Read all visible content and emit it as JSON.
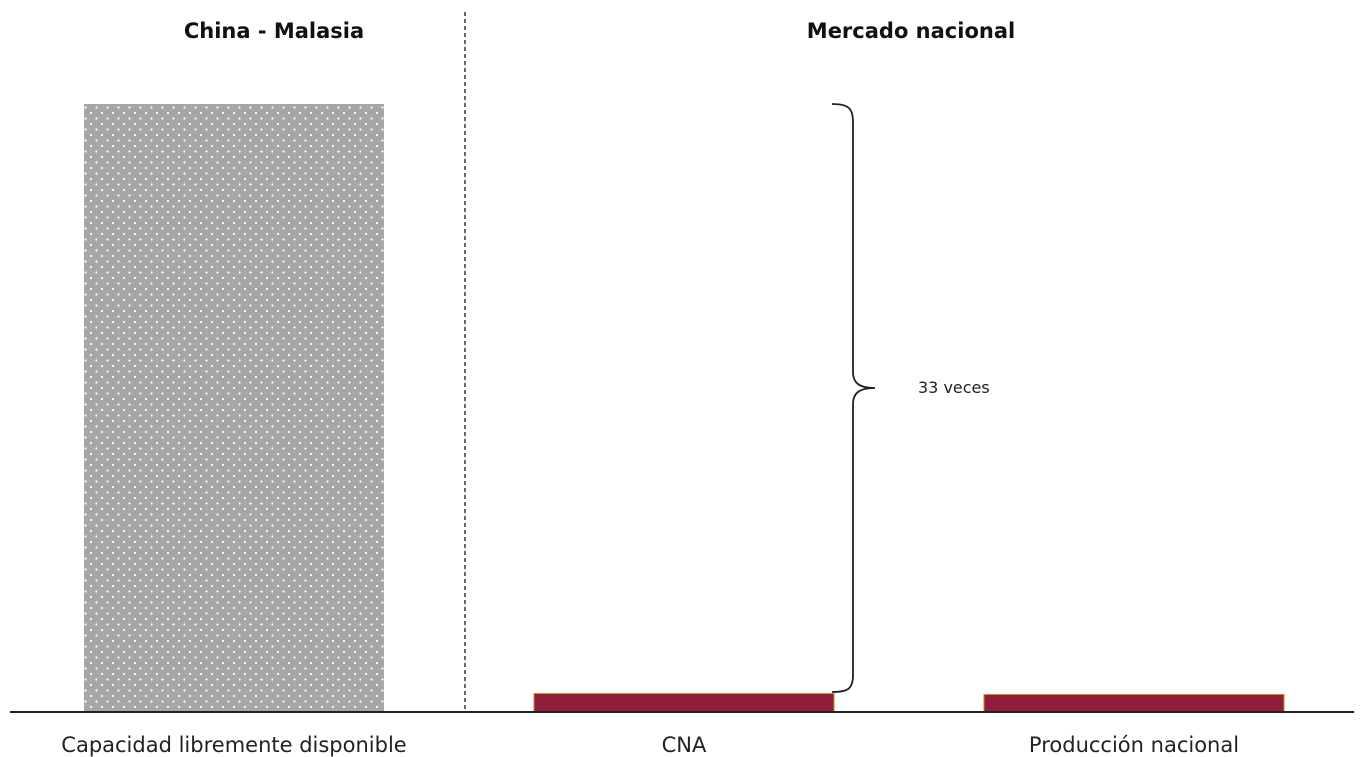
{
  "chart_data": {
    "type": "bar",
    "groups": [
      {
        "title": "China - Malasia",
        "categories": [
          "Capacidad libremente disponible"
        ]
      },
      {
        "title": "Mercado nacional",
        "categories": [
          "CNA",
          "Producción nacional"
        ]
      }
    ],
    "categories": [
      "Capacidad libremente disponible",
      "CNA",
      "Producción nacional"
    ],
    "values": [
      33,
      1,
      0.95
    ],
    "ylim": [
      0,
      33
    ],
    "axis_ticks_shown": false,
    "grid": false,
    "legend": "none",
    "annotations": [
      {
        "text": "33 veces",
        "between": [
          "Capacidad libremente disponible",
          "CNA"
        ]
      }
    ],
    "colors": {
      "Capacidad libremente disponible": "#a6a6a6",
      "CNA": "#8f1d3b",
      "Producción nacional": "#8f1d3b",
      "dot_pattern": "#ffffff",
      "bar_edge": "#c48a2a",
      "axis": "#222222"
    }
  }
}
